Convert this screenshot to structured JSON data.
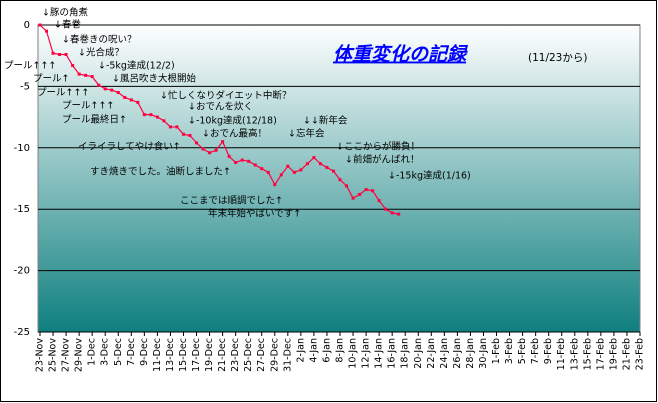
{
  "chart_data": {
    "type": "line",
    "title": "体重変化の記録",
    "subtitle": "(11/23から)",
    "categories": [
      "23-Nov",
      null,
      "25-Nov",
      null,
      "27-Nov",
      null,
      "29-Nov",
      null,
      "1-Dec",
      null,
      "3-Dec",
      null,
      "5-Dec",
      null,
      "7-Dec",
      null,
      "9-Dec",
      null,
      "11-Dec",
      null,
      "13-Dec",
      null,
      "15-Dec",
      null,
      "17-Dec",
      null,
      "19-Dec",
      null,
      "21-Dec",
      null,
      "23-Dec",
      null,
      "25-Dec",
      null,
      "27-Dec",
      null,
      "29-Dec",
      null,
      "31-Dec",
      null,
      "2-Jan",
      null,
      "4-Jan",
      null,
      "6-Jan",
      null,
      "8-Jan",
      null,
      "10-Jan",
      null,
      "12-Jan",
      null,
      "14-Jan",
      null,
      "16-Jan",
      null,
      "18-Jan",
      null,
      "20-Jan",
      null,
      "22-Jan",
      null,
      "24-Jan",
      null,
      "26-Jan",
      null,
      "28-Jan",
      null,
      "30-Jan",
      null,
      "1-Feb",
      null,
      "3-Feb",
      null,
      "5-Feb",
      null,
      "7-Feb",
      null,
      "9-Feb",
      null,
      "11-Feb",
      null,
      "13-Feb",
      null,
      "15-Feb",
      null,
      "17-Feb",
      null,
      "19-Feb",
      null,
      "21-Feb",
      null,
      "23-Feb"
    ],
    "series": [
      {
        "color": "#ff0040",
        "values": [
          0,
          -0.5,
          -2.3,
          -2.4,
          -2.4,
          -3.3,
          -4.0,
          -4.1,
          -4.2,
          -4.9,
          -5.2,
          -5.3,
          -5.5,
          -5.9,
          -6.1,
          -6.3,
          -7.3,
          -7.3,
          -7.5,
          -7.8,
          -8.3,
          -8.3,
          -8.9,
          -9.0,
          -9.6,
          -10.1,
          -10.4,
          -10.2,
          -9.5,
          -10.7,
          -11.2,
          -11.0,
          -11.1,
          -11.4,
          -11.7,
          -12.0,
          -13.0,
          -12.2,
          -11.5,
          -12.0,
          -11.8,
          -11.3,
          -10.8,
          -11.3,
          -11.6,
          -11.9,
          -12.6,
          -13.1,
          -14.1,
          -13.8,
          -13.4,
          -13.5,
          -14.3,
          -15.0,
          -15.3,
          -15.4,
          null,
          null,
          null,
          null,
          null,
          null,
          null,
          null,
          null,
          null,
          null,
          null,
          null,
          null,
          null,
          null,
          null,
          null,
          null,
          null,
          null,
          null,
          null,
          null,
          null,
          null,
          null,
          null,
          null,
          null,
          null,
          null,
          null,
          null,
          null,
          null,
          null
        ]
      }
    ],
    "ylim": [
      -25,
      0
    ],
    "yticks": [
      0,
      -5,
      -10,
      -15,
      -20,
      -25
    ],
    "grid": true,
    "annotations": [
      "↓豚の角煮",
      "↓春巻",
      "↓春巻きの呪い？",
      "↓光合成？",
      "プール↑↑↑",
      "↓-5kg達成(12/2)",
      "プール↑",
      "↓風呂吹き大根開始",
      "プール↑↑↑",
      "↓忙しくなりダイエット中断？",
      "プール↑↑↑",
      "↓おでんを炊く",
      "プール最終日↑",
      "↓-10kg達成(12/18)",
      "↓↓新年会",
      "↓おでん最高！",
      "↓忘年会",
      "イライラしてやけ食い↑",
      "↓ここからが勝負！",
      "↓前畑がんばれ！",
      "すき焼きでした。油断しました↑",
      "↓-15kg達成(1/16)",
      "ここまでは順調でした↑",
      "年末年始やばいです↑"
    ]
  }
}
